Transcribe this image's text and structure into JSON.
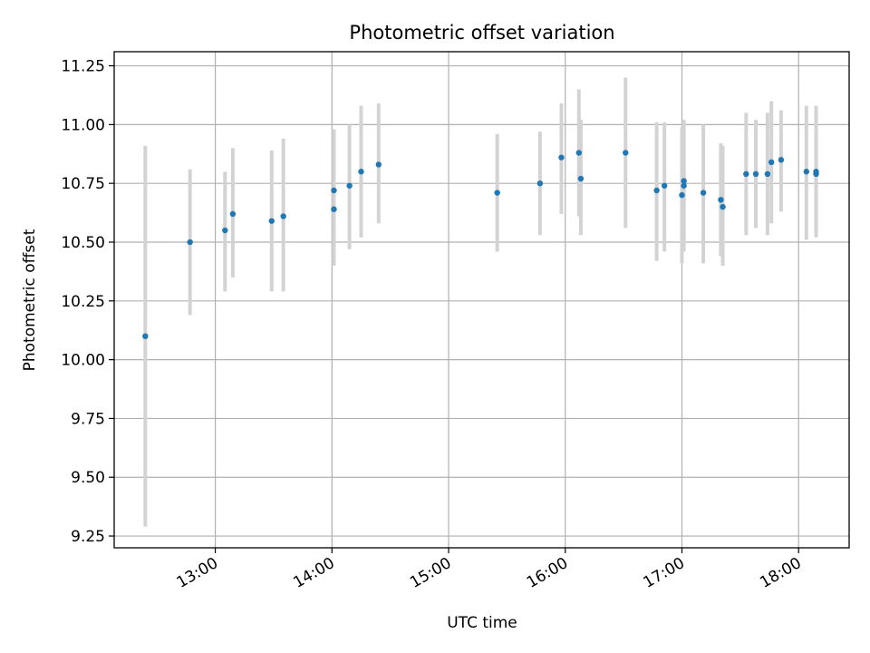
{
  "chart_data": {
    "type": "scatter",
    "title": "Photometric offset variation",
    "xlabel": "UTC time",
    "ylabel": "Photometric offset",
    "x_axis": {
      "format": "time",
      "range": [
        "12:08",
        "18:26"
      ],
      "ticks": [
        "13:00",
        "14:00",
        "15:00",
        "16:00",
        "17:00",
        "18:00"
      ]
    },
    "y_axis": {
      "range": [
        9.2,
        11.31
      ],
      "ticks": [
        "9.25",
        "9.50",
        "9.75",
        "10.00",
        "10.25",
        "10.50",
        "10.75",
        "11.00",
        "11.25"
      ]
    },
    "grid": true,
    "legend": "none",
    "colors": {
      "points": "#1f77b4",
      "errorbars": "#d3d3d3",
      "grid": "#b0b0b0"
    },
    "points": [
      {
        "time": "12:24",
        "y": 10.1,
        "low": 9.29,
        "high": 10.91
      },
      {
        "time": "12:47",
        "y": 10.5,
        "low": 10.19,
        "high": 10.81
      },
      {
        "time": "13:05",
        "y": 10.55,
        "low": 10.29,
        "high": 10.8
      },
      {
        "time": "13:09",
        "y": 10.62,
        "low": 10.35,
        "high": 10.9
      },
      {
        "time": "13:29",
        "y": 10.59,
        "low": 10.29,
        "high": 10.89
      },
      {
        "time": "13:35",
        "y": 10.61,
        "low": 10.29,
        "high": 10.94
      },
      {
        "time": "14:01",
        "y": 10.64,
        "low": 10.4,
        "high": 10.98
      },
      {
        "time": "14:01",
        "y": 10.72,
        "low": 10.46,
        "high": 10.98
      },
      {
        "time": "14:09",
        "y": 10.74,
        "low": 10.47,
        "high": 11.0
      },
      {
        "time": "14:15",
        "y": 10.8,
        "low": 10.52,
        "high": 11.08
      },
      {
        "time": "14:24",
        "y": 10.83,
        "low": 10.58,
        "high": 11.09
      },
      {
        "time": "15:25",
        "y": 10.71,
        "low": 10.46,
        "high": 10.96
      },
      {
        "time": "15:47",
        "y": 10.75,
        "low": 10.53,
        "high": 10.97
      },
      {
        "time": "15:58",
        "y": 10.86,
        "low": 10.62,
        "high": 11.09
      },
      {
        "time": "16:07",
        "y": 10.88,
        "low": 10.61,
        "high": 11.15
      },
      {
        "time": "16:08",
        "y": 10.77,
        "low": 10.53,
        "high": 11.02
      },
      {
        "time": "16:31",
        "y": 10.88,
        "low": 10.56,
        "high": 11.2
      },
      {
        "time": "16:47",
        "y": 10.72,
        "low": 10.42,
        "high": 11.01
      },
      {
        "time": "16:51",
        "y": 10.74,
        "low": 10.46,
        "high": 11.01
      },
      {
        "time": "17:00",
        "y": 10.7,
        "low": 10.41,
        "high": 10.99
      },
      {
        "time": "17:01",
        "y": 10.74,
        "low": 10.46,
        "high": 11.01
      },
      {
        "time": "17:01",
        "y": 10.76,
        "low": 10.51,
        "high": 11.02
      },
      {
        "time": "17:11",
        "y": 10.71,
        "low": 10.41,
        "high": 11.0
      },
      {
        "time": "17:20",
        "y": 10.68,
        "low": 10.44,
        "high": 10.92
      },
      {
        "time": "17:21",
        "y": 10.65,
        "low": 10.4,
        "high": 10.91
      },
      {
        "time": "17:33",
        "y": 10.79,
        "low": 10.53,
        "high": 11.05
      },
      {
        "time": "17:38",
        "y": 10.79,
        "low": 10.56,
        "high": 11.02
      },
      {
        "time": "17:44",
        "y": 10.79,
        "low": 10.53,
        "high": 11.05
      },
      {
        "time": "17:46",
        "y": 10.84,
        "low": 10.58,
        "high": 11.1
      },
      {
        "time": "17:51",
        "y": 10.85,
        "low": 10.63,
        "high": 11.06
      },
      {
        "time": "18:04",
        "y": 10.8,
        "low": 10.51,
        "high": 11.08
      },
      {
        "time": "18:09",
        "y": 10.79,
        "low": 10.52,
        "high": 11.08
      },
      {
        "time": "18:09",
        "y": 10.8,
        "low": 10.53,
        "high": 11.08
      }
    ]
  }
}
